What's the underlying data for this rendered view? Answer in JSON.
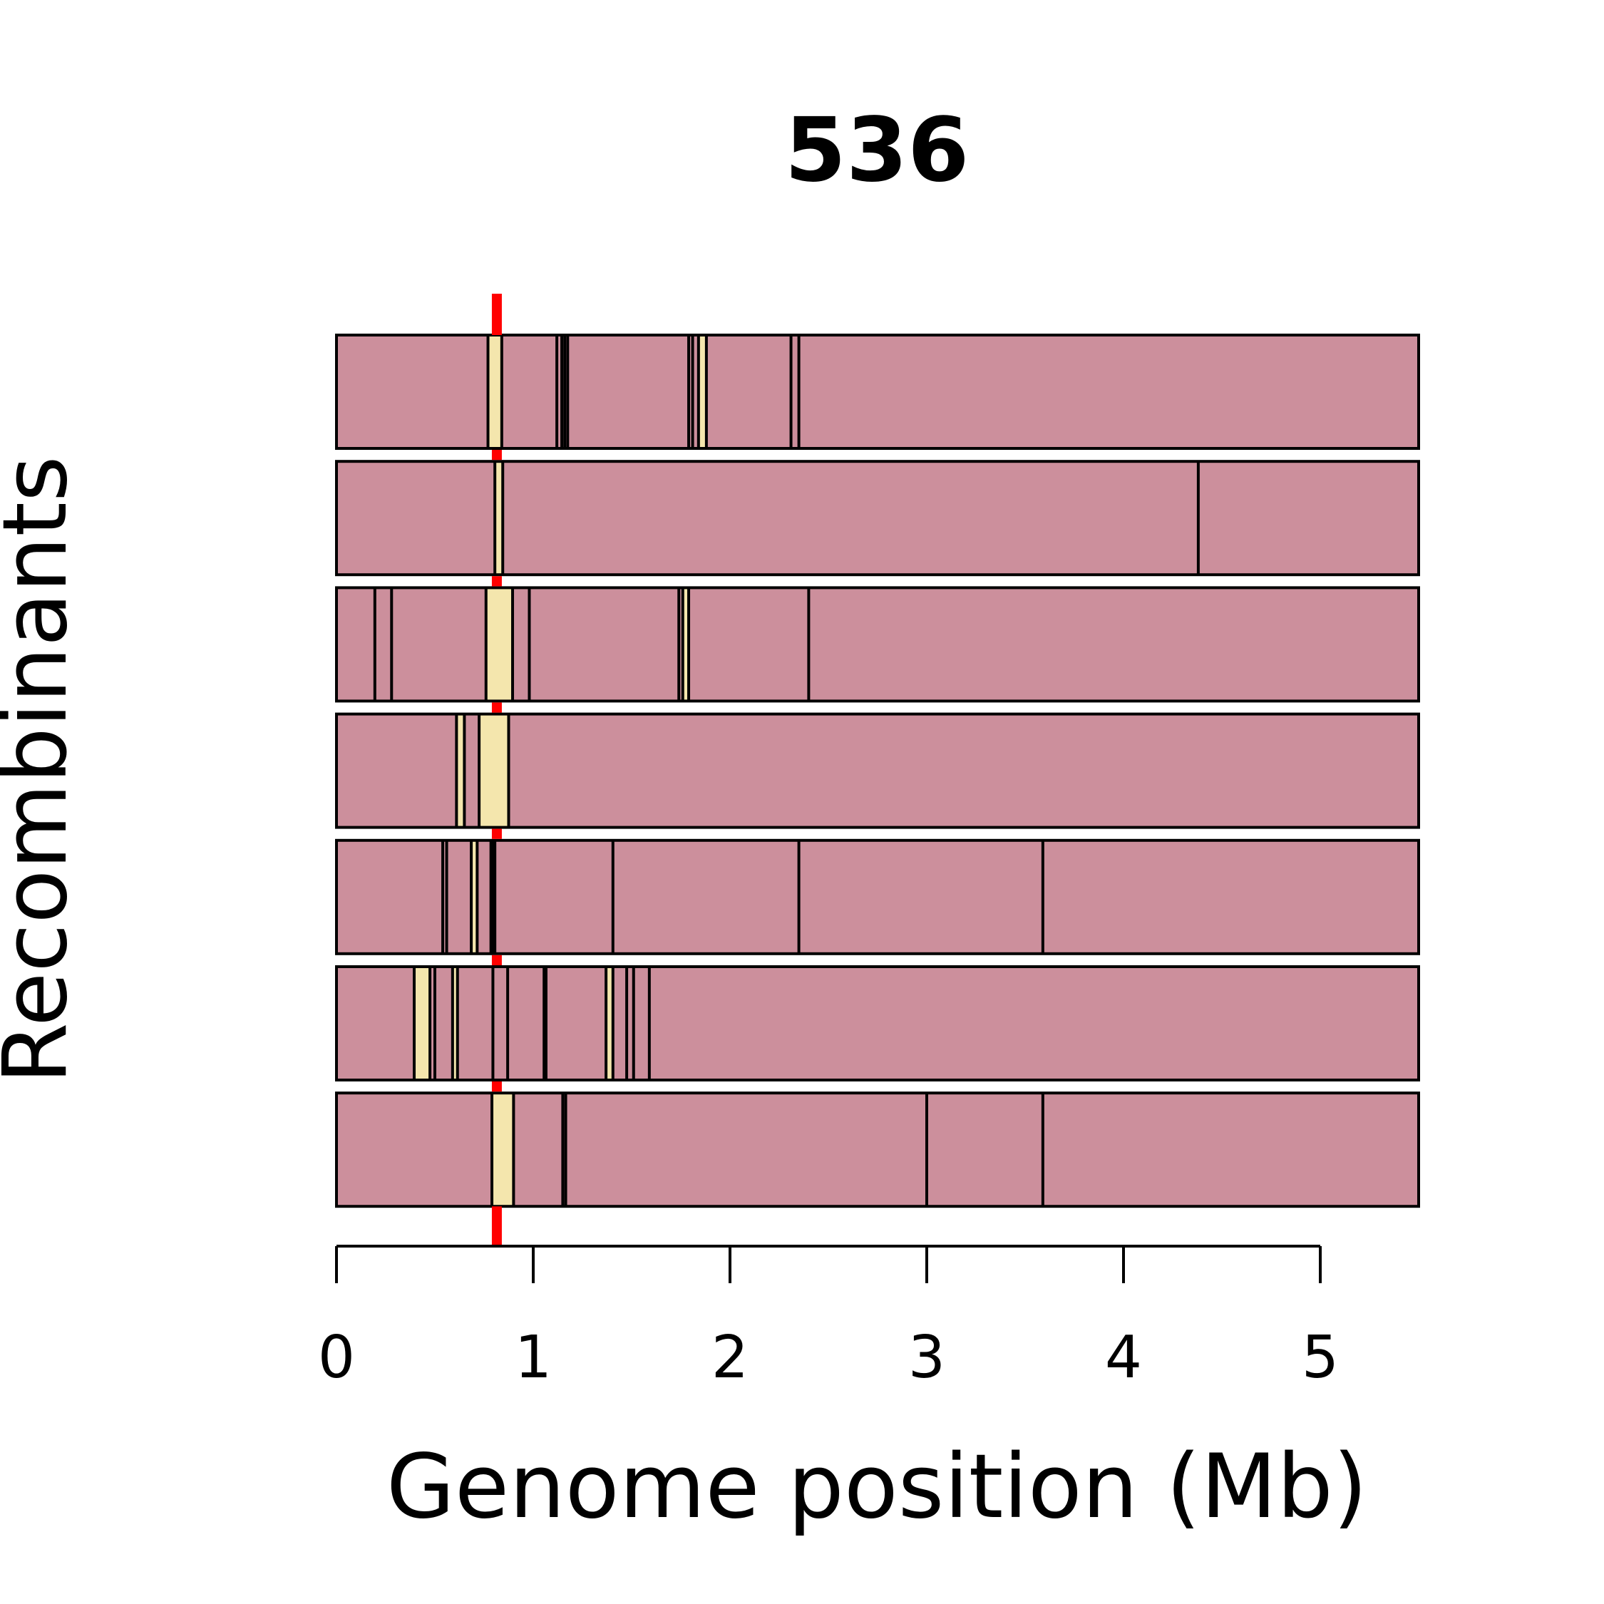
{
  "chart_data": {
    "type": "genome-track",
    "title": "536",
    "xlabel": "Genome position (Mb)",
    "ylabel": "Recombinants",
    "x_ticks": [
      0,
      1,
      2,
      3,
      4,
      5
    ],
    "xlim": [
      0,
      5.5
    ],
    "marker_position": 0.815,
    "colors": {
      "background_segment": "#cc8f9c",
      "highlight_segment": "#f4e6ad",
      "marker_line": "#ff0000",
      "outline": "#000000"
    },
    "recombinants": [
      {
        "highlights": [
          [
            0.77,
            0.84
          ],
          [
            1.84,
            1.88
          ]
        ],
        "boundaries": [
          0.77,
          0.84,
          1.12,
          1.145,
          1.16,
          1.175,
          1.79,
          1.81,
          1.84,
          1.88,
          2.31,
          2.35
        ]
      },
      {
        "highlights": [
          [
            0.805,
            0.845
          ]
        ],
        "boundaries": [
          0.805,
          0.845,
          4.38
        ]
      },
      {
        "highlights": [
          [
            0.76,
            0.895
          ],
          [
            1.76,
            1.79
          ]
        ],
        "boundaries": [
          0.195,
          0.28,
          0.76,
          0.895,
          0.98,
          1.74,
          1.76,
          1.79,
          2.4
        ]
      },
      {
        "highlights": [
          [
            0.61,
            0.65
          ],
          [
            0.725,
            0.875
          ]
        ],
        "boundaries": [
          0.61,
          0.65,
          0.725,
          0.875
        ]
      },
      {
        "highlights": [
          [
            0.685,
            0.715
          ]
        ],
        "boundaries": [
          0.54,
          0.56,
          0.685,
          0.715,
          0.785,
          0.795,
          0.805,
          1.405,
          2.35,
          3.59
        ]
      },
      {
        "highlights": [
          [
            0.395,
            0.475
          ],
          [
            0.59,
            0.615
          ],
          [
            1.37,
            1.405
          ]
        ],
        "boundaries": [
          0.395,
          0.475,
          0.5,
          0.59,
          0.615,
          0.795,
          0.87,
          1.055,
          1.065,
          1.37,
          1.405,
          1.475,
          1.51,
          1.59
        ]
      },
      {
        "highlights": [
          [
            0.79,
            0.9
          ]
        ],
        "boundaries": [
          0.79,
          0.9,
          1.15,
          1.165,
          3.0,
          3.59
        ]
      }
    ]
  }
}
